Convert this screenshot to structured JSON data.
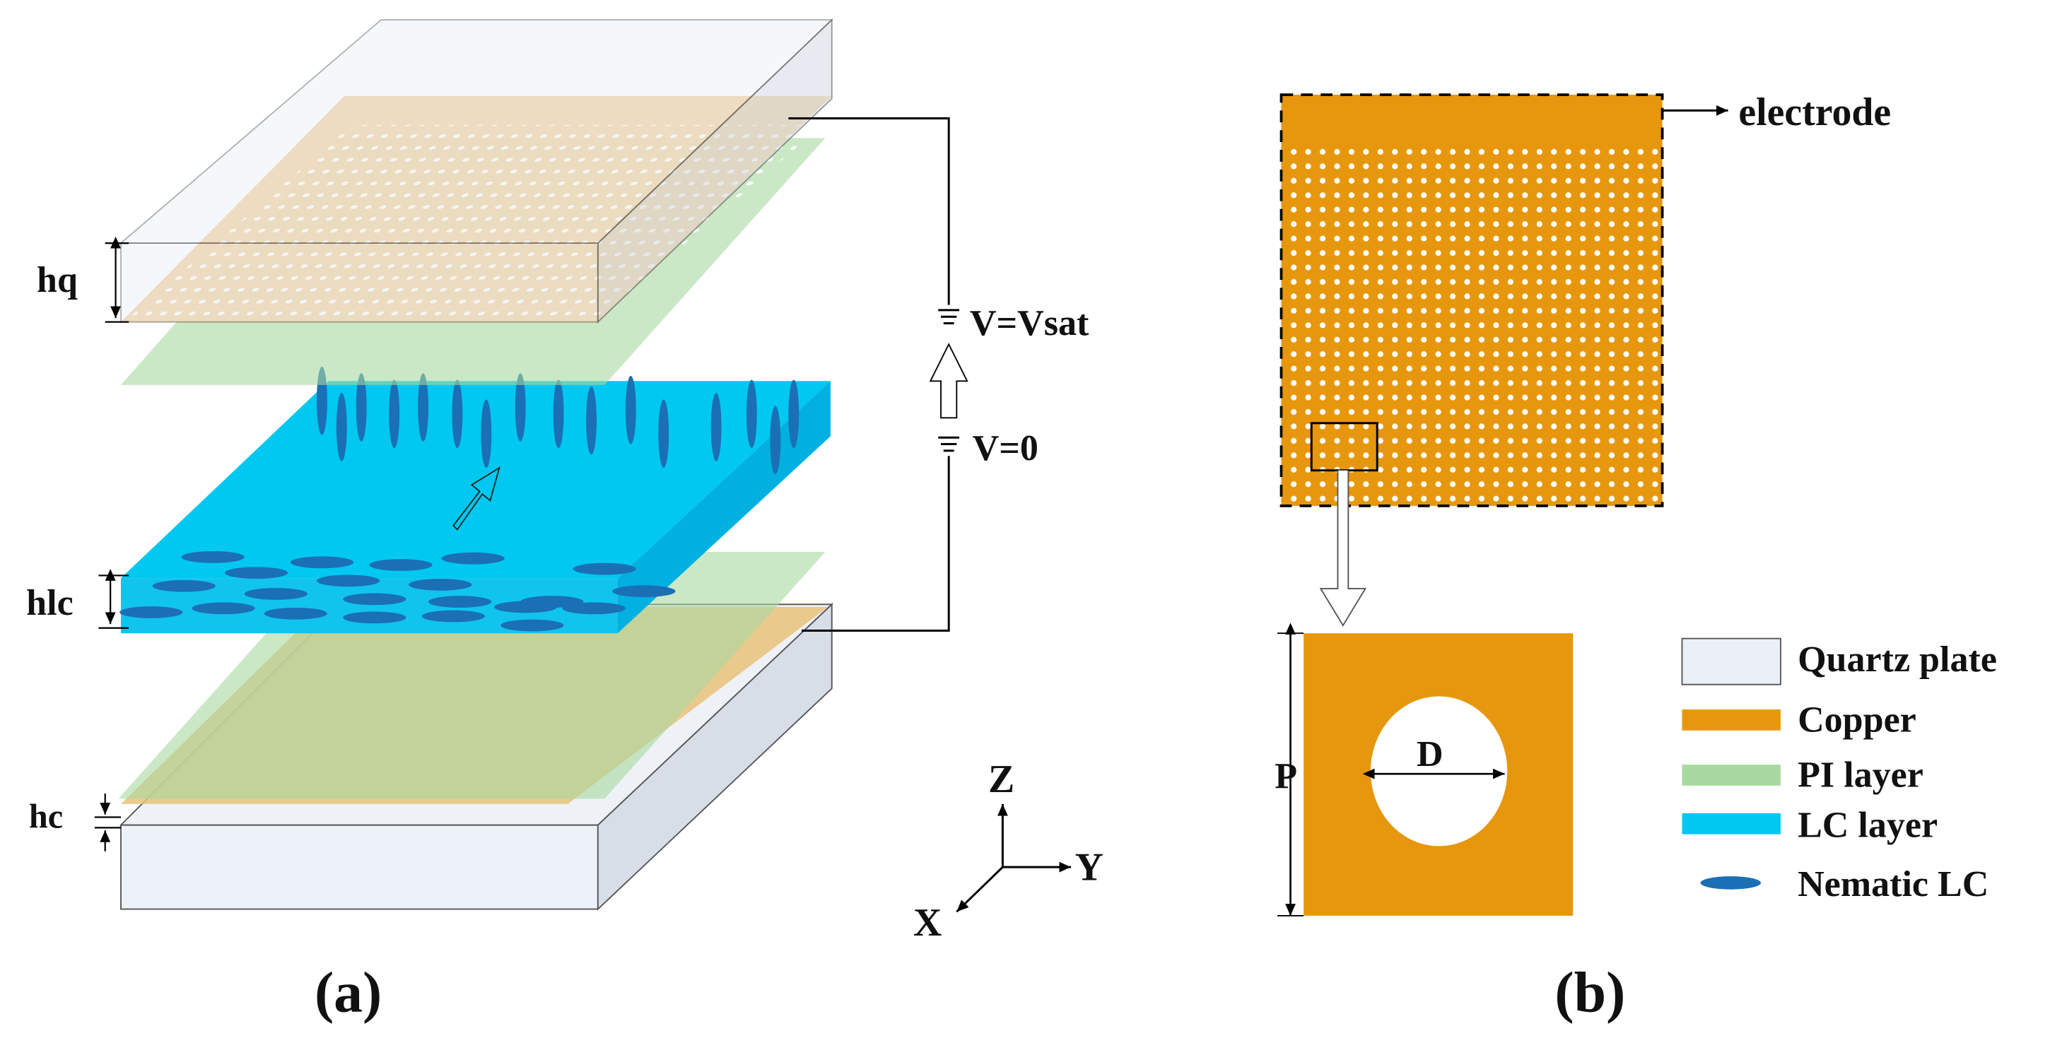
{
  "panel_a": {
    "labels": {
      "hq": "hq",
      "hlc": "hlc",
      "hc": "hc",
      "v_sat": "V=Vsat",
      "v_zero": "V=0"
    },
    "axes": {
      "z": "Z",
      "y": "Y",
      "x": "X"
    },
    "caption": "(a)"
  },
  "panel_b": {
    "electrode": "electrode",
    "diameter": "D",
    "period": "P",
    "caption": "(b)",
    "legend": [
      "Quartz plate",
      "Copper",
      "PI layer",
      "LC layer",
      "Nematic LC"
    ]
  }
}
